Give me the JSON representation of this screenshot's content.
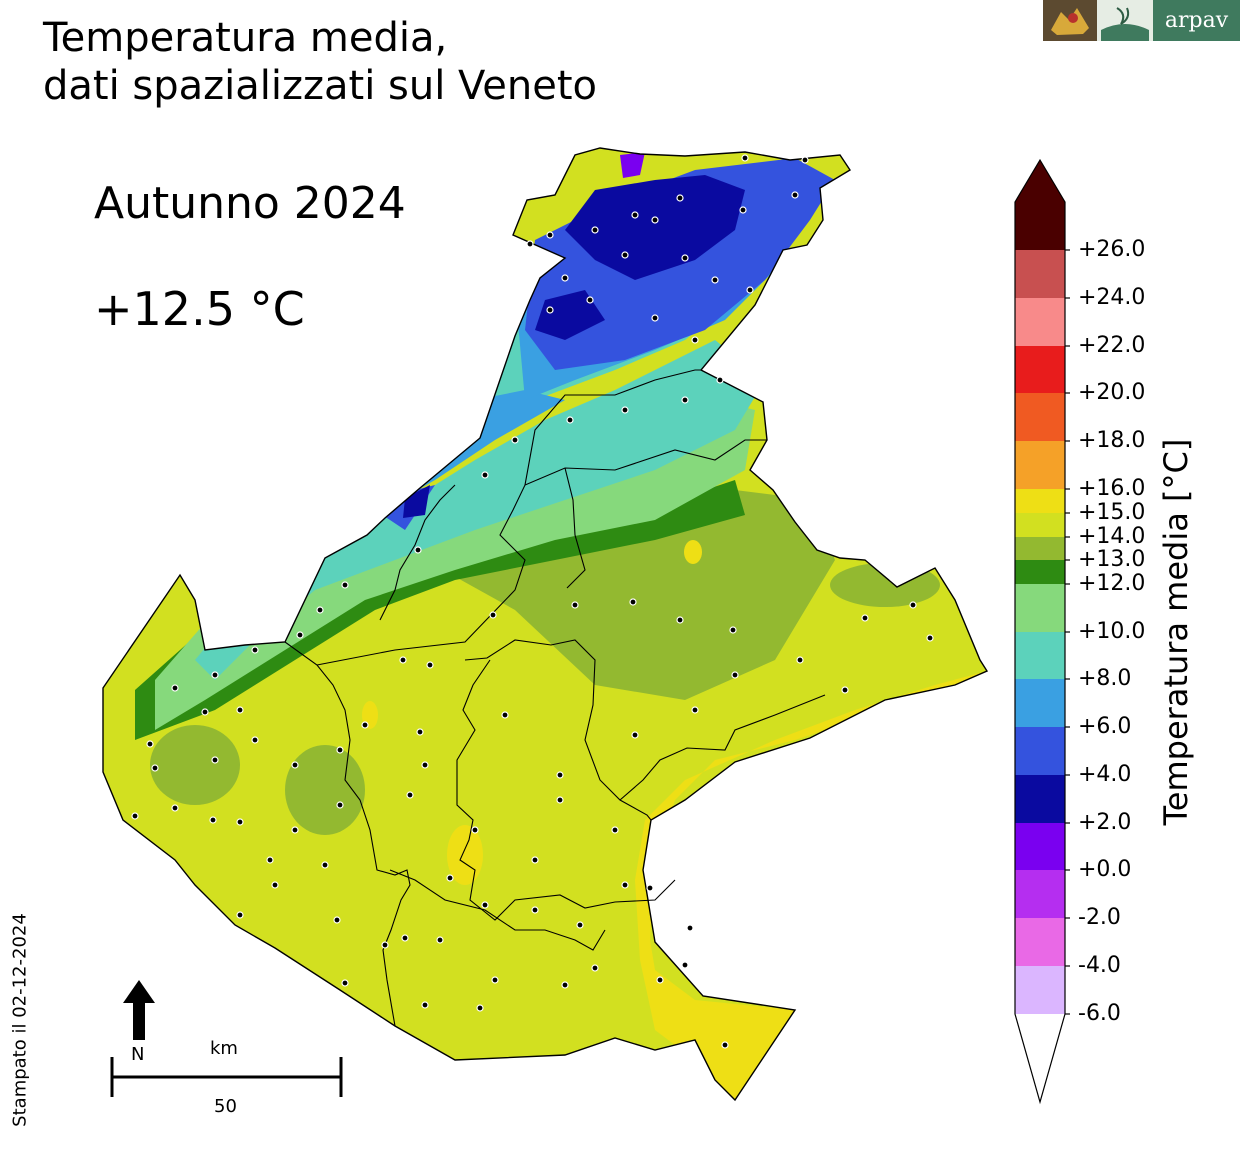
{
  "title": {
    "line1": "Temperatura media,",
    "line2": "dati spazializzati sul Veneto"
  },
  "logos": {
    "arpav_text": "arpav"
  },
  "season": "Autunno 2024",
  "mean_value": "+12.5 °C",
  "legend": {
    "title": "Temperatura media [°C]",
    "tick_labels": [
      "+26.0",
      "+24.0",
      "+22.0",
      "+20.0",
      "+18.0",
      "+16.0",
      "+15.0",
      "+14.0",
      "+13.0",
      "+12.0",
      "+10.0",
      "+8.0",
      "+6.0",
      "+4.0",
      "+2.0",
      "+0.0",
      "-2.0",
      "-4.0",
      "-6.0"
    ],
    "colors": {
      "above_26": "#4a0000",
      "24_26": "#c85050",
      "22_24": "#f88a8a",
      "20_22": "#e81c1c",
      "18_20": "#f05a22",
      "16_18": "#f5a128",
      "15_16": "#eedf15",
      "14_15": "#d2e020",
      "13_14": "#93b930",
      "12_13": "#2e8b12",
      "10_12": "#86d97c",
      "8_10": "#5cd2bb",
      "6_8": "#3aa0e2",
      "4_6": "#3453de",
      "2_4": "#0a0aa0",
      "0_2": "#7a00f0",
      "-2_0": "#b52ef0",
      "-4_-2": "#e969e6",
      "-6_-4": "#dbb6ff",
      "below_-6": "#ffffff"
    }
  },
  "scale_bar": {
    "unit": "km",
    "value": "50",
    "north": "N"
  },
  "stamp": "Stampato il 02-12-2024"
}
